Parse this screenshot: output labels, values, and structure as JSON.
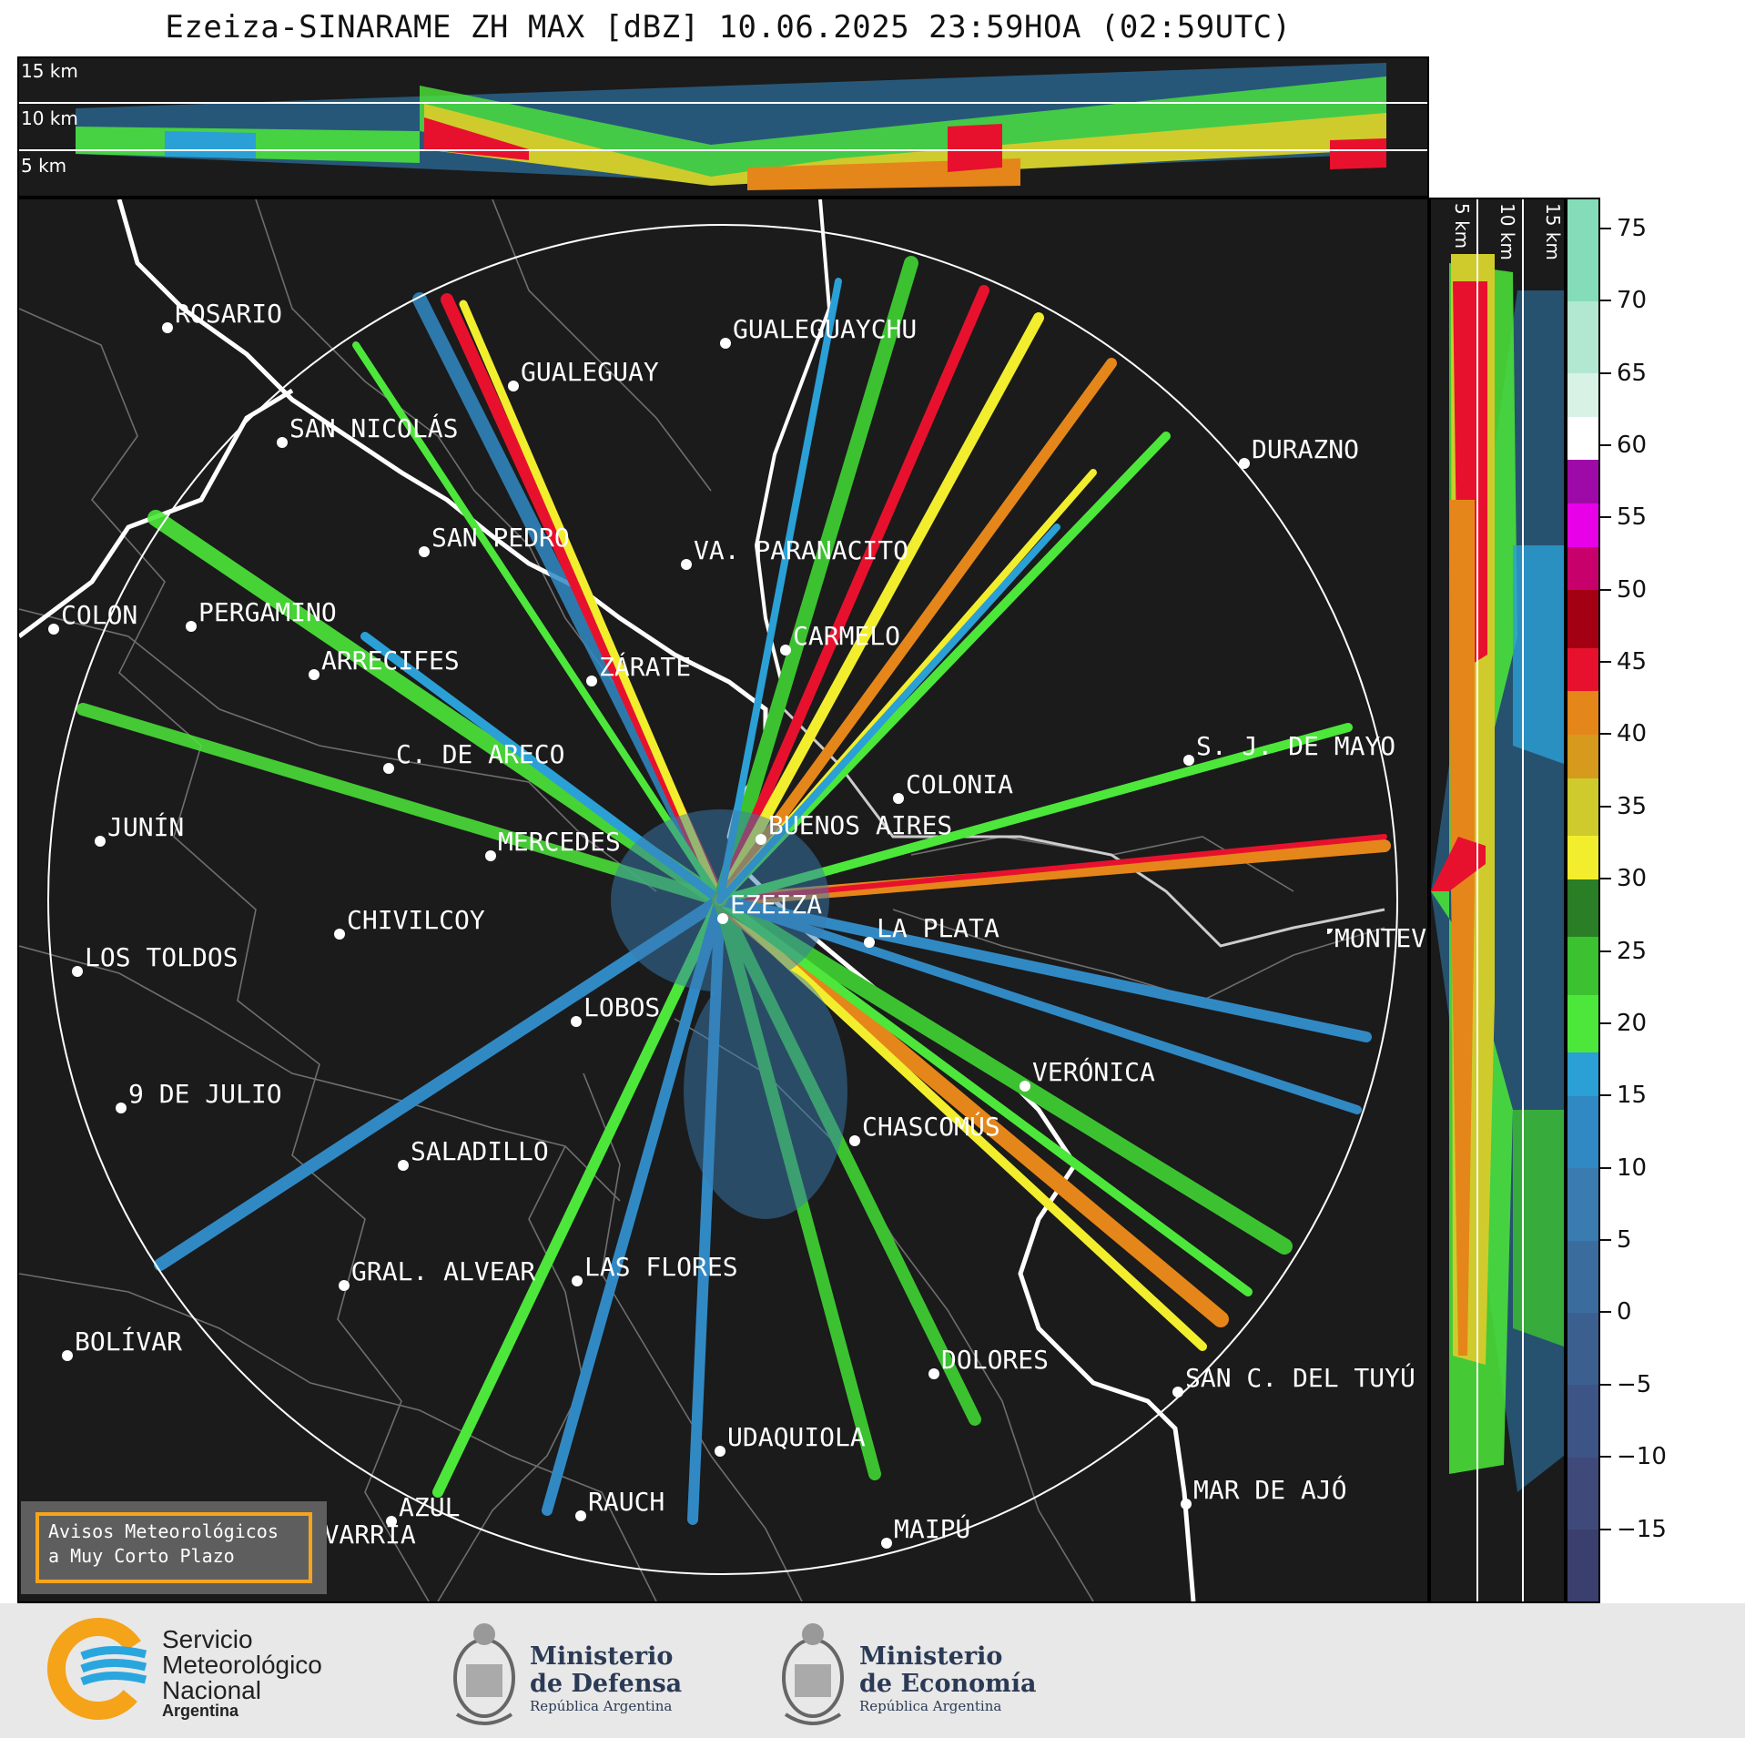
{
  "title": "Ezeiza-SINARAME ZH MAX [dBZ] 10.06.2025 23:59HOA (02:59UTC)",
  "height_labels": [
    "15 km",
    "10 km",
    "5 km"
  ],
  "side_height_labels": [
    "5 km",
    "10 km",
    "15 km"
  ],
  "colorbar": {
    "ticks": [
      "75",
      "70",
      "65",
      "60",
      "55",
      "50",
      "45",
      "40",
      "35",
      "30",
      "25",
      "20",
      "15",
      "10",
      "5",
      "0",
      "−5",
      "−10",
      "−15"
    ],
    "min": -20,
    "max": 77,
    "segments": [
      {
        "from": -20,
        "to": -15,
        "color": "#3b3f6e"
      },
      {
        "from": -15,
        "to": -10,
        "color": "#3f4a7a"
      },
      {
        "from": -10,
        "to": -5,
        "color": "#3d5586"
      },
      {
        "from": -5,
        "to": 0,
        "color": "#3b6090"
      },
      {
        "from": 0,
        "to": 5,
        "color": "#3a6d9e"
      },
      {
        "from": 5,
        "to": 10,
        "color": "#3a7bb0"
      },
      {
        "from": 10,
        "to": 15,
        "color": "#3189c4"
      },
      {
        "from": 15,
        "to": 18,
        "color": "#2aa0d6"
      },
      {
        "from": 18,
        "to": 22,
        "color": "#4ce73a"
      },
      {
        "from": 22,
        "to": 26,
        "color": "#3cc230"
      },
      {
        "from": 26,
        "to": 30,
        "color": "#2a7e26"
      },
      {
        "from": 30,
        "to": 33,
        "color": "#f2ee2e"
      },
      {
        "from": 33,
        "to": 37,
        "color": "#cfcb2c"
      },
      {
        "from": 37,
        "to": 40,
        "color": "#d69a1c"
      },
      {
        "from": 40,
        "to": 43,
        "color": "#e5861a"
      },
      {
        "from": 43,
        "to": 46,
        "color": "#e8112d"
      },
      {
        "from": 46,
        "to": 50,
        "color": "#a30014"
      },
      {
        "from": 50,
        "to": 53,
        "color": "#c8006c"
      },
      {
        "from": 53,
        "to": 56,
        "color": "#e800e8"
      },
      {
        "from": 56,
        "to": 59,
        "color": "#9e0aa8"
      },
      {
        "from": 59,
        "to": 62,
        "color": "#ffffff"
      },
      {
        "from": 62,
        "to": 65,
        "color": "#d8f2e6"
      },
      {
        "from": 65,
        "to": 70,
        "color": "#b2e8d2"
      },
      {
        "from": 70,
        "to": 77,
        "color": "#84dcb8"
      }
    ]
  },
  "cities": [
    {
      "name": "ROSARIO"
    },
    {
      "name": "GUALEGUAYCHU"
    },
    {
      "name": "GUALEGUAY"
    },
    {
      "name": "SAN NICOLÁS"
    },
    {
      "name": "DURAZNO"
    },
    {
      "name": "SAN PEDRO"
    },
    {
      "name": "VA. PARANACITO"
    },
    {
      "name": "COLON"
    },
    {
      "name": "PERGAMINO"
    },
    {
      "name": "CARMELO"
    },
    {
      "name": "ARRECIFES"
    },
    {
      "name": "ZÁRATE"
    },
    {
      "name": "S. J. DE MAYO"
    },
    {
      "name": "C. DE ARECO"
    },
    {
      "name": "COLONIA"
    },
    {
      "name": "JUNÍN"
    },
    {
      "name": "BUENOS AIRES"
    },
    {
      "name": "MERCEDES"
    },
    {
      "name": "EZEIZA"
    },
    {
      "name": "MONTEVIDEO"
    },
    {
      "name": "CHIVILCOY"
    },
    {
      "name": "LA PLATA"
    },
    {
      "name": "LOS TOLDOS"
    },
    {
      "name": "LOBOS"
    },
    {
      "name": "VERÓNICA"
    },
    {
      "name": "9 DE JULIO"
    },
    {
      "name": "CHASCOMÚS"
    },
    {
      "name": "SALADILLO"
    },
    {
      "name": "GRAL. ALVEAR"
    },
    {
      "name": "LAS FLORES"
    },
    {
      "name": "BOLÍVAR"
    },
    {
      "name": "DOLORES"
    },
    {
      "name": "SAN C. DEL TUYÚ"
    },
    {
      "name": "UDAQUIOLA"
    },
    {
      "name": "MAR DE AJÓ"
    },
    {
      "name": "AZUL"
    },
    {
      "name": "RAUCH"
    },
    {
      "name": "OLAVARRÍA"
    },
    {
      "name": "MAIPÚ"
    }
  ],
  "avisos": {
    "line1": "Avisos Meteorológicos",
    "line2": "a Muy Corto Plazo"
  },
  "logos": {
    "smn": {
      "line1": "Servicio",
      "line2": "Meteorológico",
      "line3": "Nacional",
      "sub": "Argentina"
    },
    "defensa": {
      "line1": "Ministerio",
      "line2": "de Defensa",
      "sub": "República Argentina"
    },
    "economia": {
      "line1": "Ministerio",
      "line2": "de Economía",
      "sub": "República Argentina"
    }
  },
  "colors": {
    "background": "#1b1b1b",
    "ring": "#ffffff",
    "avisos_border": "#f7a41d",
    "smn_orange": "#f5a319",
    "smn_blue": "#2aa6df"
  }
}
